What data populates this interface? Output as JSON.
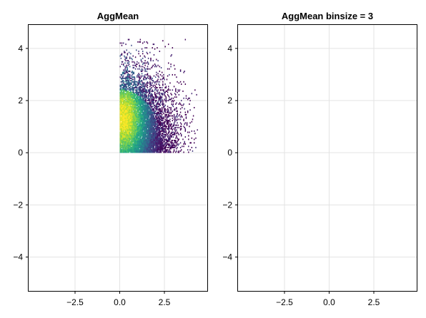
{
  "chart_data": [
    {
      "type": "heatmap",
      "title": "AggMean",
      "xlabel": "",
      "ylabel": "",
      "xlim": [
        -5.1,
        4.9
      ],
      "ylim": [
        -5.3,
        4.9
      ],
      "xticks": [
        -2.5,
        0.0,
        2.5
      ],
      "xtick_labels": [
        "−2.5",
        "0.0",
        "2.5"
      ],
      "yticks": [
        -4,
        -2,
        0,
        2,
        4
      ],
      "ytick_labels": [
        "−4",
        "−2",
        "0",
        "2",
        "4"
      ],
      "grid": true,
      "colormap": "viridis",
      "data_region": {
        "x": [
          0.0,
          4.4
        ],
        "y": [
          0.0,
          4.4
        ]
      },
      "peak_near": [
        0.2,
        1.3
      ]
    },
    {
      "type": "heatmap",
      "title": "AggMean binsize = 3",
      "xlabel": "",
      "ylabel": "",
      "xlim": [
        -5.1,
        4.9
      ],
      "ylim": [
        -5.3,
        4.9
      ],
      "xticks": [
        -2.5,
        0.0,
        2.5
      ],
      "xtick_labels": [
        "−2.5",
        "0.0",
        "2.5"
      ],
      "yticks": [
        -4,
        -2,
        0,
        2,
        4
      ],
      "ytick_labels": [
        "−4",
        "−2",
        "0",
        "2",
        "4"
      ],
      "grid": true,
      "colormap": "viridis",
      "data_region": null
    }
  ]
}
